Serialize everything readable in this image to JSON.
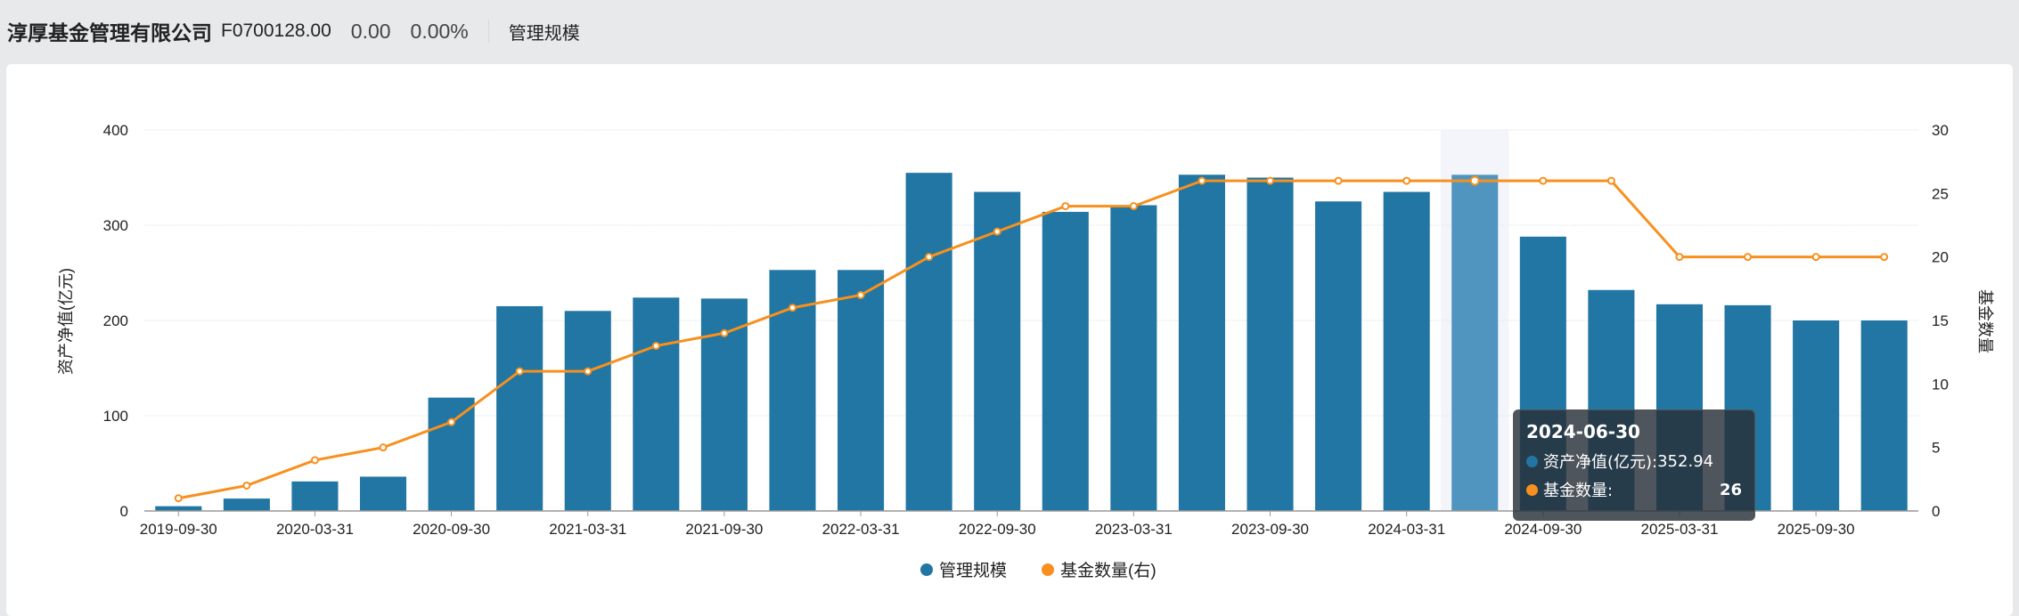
{
  "header": {
    "company": "淳厚基金管理有限公司",
    "code": "F0700128.00",
    "change": "0.00",
    "change_pct": "0.00%",
    "tab": "管理规模"
  },
  "colors": {
    "bar": "#2276a3",
    "bar_highlight": "#4f95c0",
    "line": "#f7901e"
  },
  "tooltip": {
    "date": "2024-06-30",
    "row1_label": "资产净值(亿元):",
    "row1_value": "352.94",
    "row2_label": "基金数量:",
    "row2_value": "26"
  },
  "chart_data": {
    "type": "bar+line",
    "categories": [
      "2019-09-30",
      "2019-12-31",
      "2020-03-31",
      "2020-06-30",
      "2020-09-30",
      "2020-12-31",
      "2021-03-31",
      "2021-06-30",
      "2021-09-30",
      "2021-12-31",
      "2022-03-31",
      "2022-06-30",
      "2022-09-30",
      "2022-12-31",
      "2023-03-31",
      "2023-06-30",
      "2023-09-30",
      "2023-12-31",
      "2024-03-31",
      "2024-06-30",
      "2024-09-30",
      "2024-12-31",
      "2025-03-31",
      "2025-06-30",
      "2025-09-30",
      "2025-12-31"
    ],
    "x_tick_labels": [
      "2019-09-30",
      "2020-03-31",
      "2020-09-30",
      "2021-03-31",
      "2021-09-30",
      "2022-03-31",
      "2022-09-30",
      "2023-03-31",
      "2023-09-30",
      "2024-03-31",
      "2024-09-30",
      "2025-03-31",
      "2025-09-30"
    ],
    "series": [
      {
        "name": "管理规模",
        "type": "bar",
        "axis": "left",
        "values": [
          5,
          13,
          31,
          36,
          119,
          215,
          210,
          224,
          223,
          253,
          253,
          355,
          335,
          314,
          321,
          353,
          350,
          325,
          335,
          352.94,
          288,
          232,
          217,
          216,
          200,
          200
        ]
      },
      {
        "name": "基金数量(右)",
        "type": "line",
        "axis": "right",
        "values": [
          1,
          2,
          4,
          5,
          7,
          11,
          11,
          13,
          14,
          16,
          17,
          20,
          22,
          24,
          24,
          26,
          26,
          26,
          26,
          26,
          26,
          26,
          20,
          20,
          20,
          20
        ]
      }
    ],
    "ylabel": "资产净值(亿元)",
    "ylabel_right": "基金数量",
    "ylim": [
      0,
      400
    ],
    "yticks": [
      0,
      100,
      200,
      300,
      400
    ],
    "ylim_right": [
      0,
      30
    ],
    "yticks_right": [
      0,
      5,
      10,
      15,
      20,
      25,
      30
    ],
    "highlight": "2024-06-30",
    "grid": true,
    "legend": "bottom-center"
  }
}
